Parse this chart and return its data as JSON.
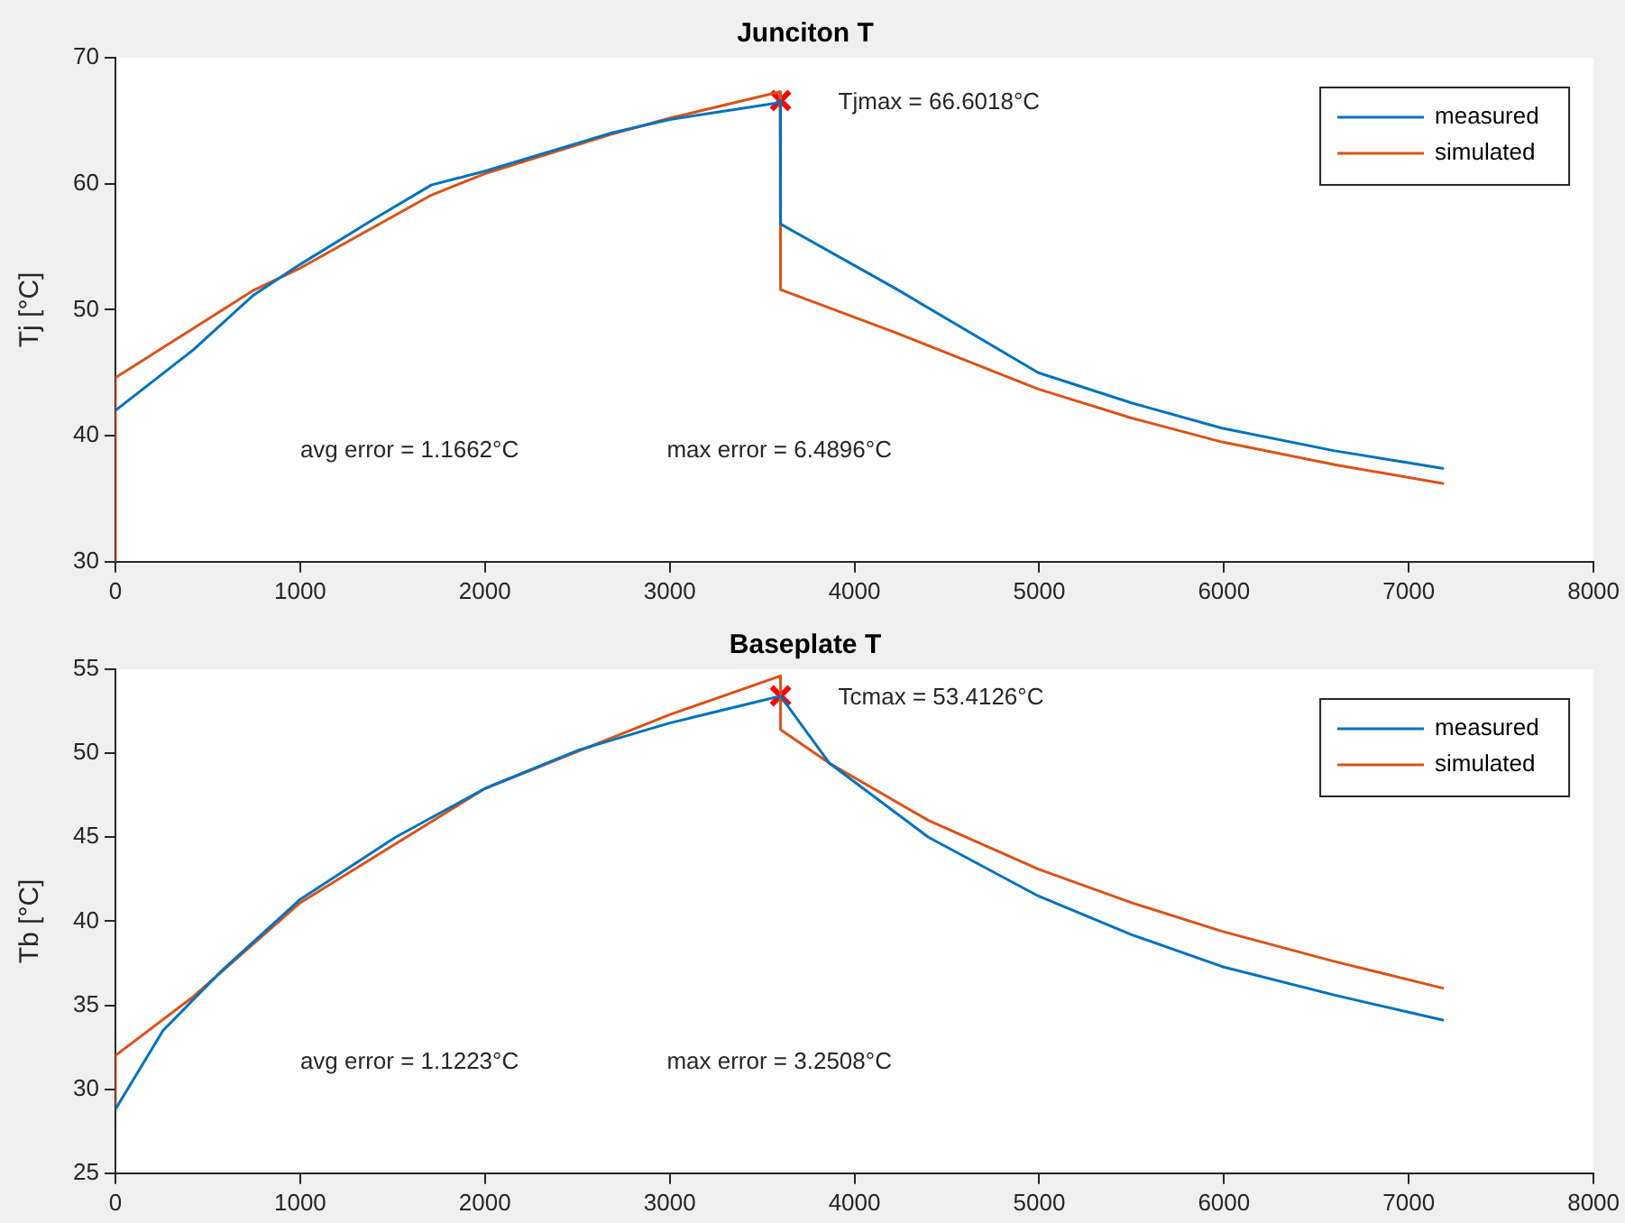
{
  "chart_data": [
    {
      "type": "line",
      "title": "Junciton T",
      "ylabel": "Tj [°C]",
      "xlim": [
        0,
        8000
      ],
      "xticks": [
        0,
        1000,
        2000,
        3000,
        4000,
        5000,
        6000,
        7000,
        8000
      ],
      "ylim": [
        30,
        70
      ],
      "yticks": [
        30,
        40,
        50,
        60,
        70
      ],
      "grid": false,
      "legend": "top right",
      "marker": "none",
      "annotations": [
        {
          "text": "Tjmax = 66.6018°C",
          "x": 3600,
          "y": 66.6018
        },
        "avg error = 1.1662°C",
        "max error = 6.4896°C"
      ],
      "series": [
        {
          "name": "measured",
          "color": "#0072bd",
          "x": [
            0,
            420,
            742,
            1000,
            1400,
            1710,
            2000,
            2677,
            3000,
            3580,
            3600,
            3600,
            4220,
            4995,
            5500,
            5990,
            6600,
            7190
          ],
          "values": [
            42.0,
            46.8,
            51.1,
            53.6,
            57.2,
            59.9,
            61.0,
            64.0,
            65.1,
            66.4,
            66.6,
            56.8,
            51.7,
            45.0,
            42.6,
            40.6,
            38.8,
            37.4
          ]
        },
        {
          "name": "simulated",
          "color": "#d95319",
          "x": [
            0,
            0,
            742,
            1000,
            1710,
            2000,
            2677,
            3000,
            3597,
            3600,
            3600,
            4220,
            4995,
            5500,
            5990,
            6600,
            7190
          ],
          "values": [
            30,
            44.6,
            51.5,
            53.3,
            59.1,
            60.8,
            63.9,
            65.2,
            67.3,
            67.3,
            51.6,
            48.2,
            43.7,
            41.4,
            39.5,
            37.7,
            36.2
          ]
        },
        {
          "type": "scatter",
          "color": "#ff0000",
          "marker": "cross",
          "x": [
            3600
          ],
          "values": [
            66.6018
          ]
        }
      ]
    },
    {
      "type": "line",
      "title": "Baseplate T",
      "ylabel": "Tb [°C]",
      "xlim": [
        0,
        8000
      ],
      "xticks": [
        0,
        1000,
        2000,
        3000,
        4000,
        5000,
        6000,
        7000,
        8000
      ],
      "ylim": [
        25,
        55
      ],
      "yticks": [
        25,
        30,
        35,
        40,
        45,
        50,
        55
      ],
      "grid": false,
      "legend": "top right",
      "marker": "none",
      "annotations": [
        {
          "text": "Tcmax = 53.4126°C",
          "x": 3600,
          "y": 53.4126
        },
        "avg error = 1.1223°C",
        "max error = 3.2508°C"
      ],
      "series": [
        {
          "name": "measured",
          "color": "#0072bd",
          "x": [
            0,
            258,
            580,
            1000,
            1516,
            2000,
            2510,
            3000,
            3600,
            3865,
            4400,
            4995,
            5500,
            5990,
            6600,
            7190
          ],
          "values": [
            28.8,
            33.5,
            37.1,
            41.3,
            45.0,
            47.9,
            50.2,
            51.8,
            53.4,
            49.4,
            45.0,
            41.5,
            39.2,
            37.3,
            35.6,
            34.1
          ]
        },
        {
          "name": "simulated",
          "color": "#d95319",
          "x": [
            0,
            0,
            420,
            1000,
            2000,
            3000,
            3600,
            3600,
            3865,
            4400,
            4995,
            5500,
            5990,
            6600,
            7190
          ],
          "values": [
            29.0,
            32.0,
            35.5,
            41.1,
            47.9,
            52.3,
            54.6,
            51.4,
            49.4,
            46.0,
            43.1,
            41.1,
            39.4,
            37.6,
            36.0
          ]
        },
        {
          "type": "scatter",
          "color": "#ff0000",
          "marker": "cross",
          "x": [
            3600
          ],
          "values": [
            53.4126
          ]
        }
      ]
    }
  ]
}
